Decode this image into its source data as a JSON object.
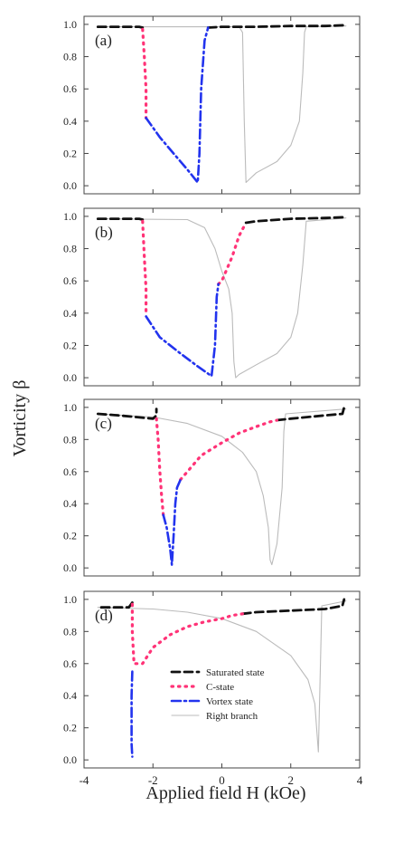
{
  "chart_data": {
    "type": "line",
    "xlabel": "Applied field H (kOe)",
    "ylabel": "Vorticity β",
    "xlim": [
      -4,
      4
    ],
    "ylim": [
      -0.05,
      1.05
    ],
    "xticks": [
      "-4",
      "-2",
      "0",
      "2",
      "4"
    ],
    "yticks": [
      "0.0",
      "0.2",
      "0.4",
      "0.6",
      "0.8",
      "1.0"
    ],
    "legend": {
      "placement": "inside bottom panel, center-right",
      "entries": [
        {
          "label": "Saturated state",
          "color": "#111111",
          "style": "dashed"
        },
        {
          "label": "C-state",
          "color": "#ff3377",
          "style": "dotted"
        },
        {
          "label": "Vortex state",
          "color": "#2233ee",
          "style": "dash-dot"
        },
        {
          "label": "Right branch",
          "color": "#bbbbbb",
          "style": "solid"
        }
      ]
    },
    "panels": [
      {
        "label": "(a)",
        "series": [
          {
            "name": "Saturated state",
            "x": [
              -3.6,
              -3.0,
              -2.6,
              -2.4,
              -2.3
            ],
            "y": [
              0.985,
              0.985,
              0.985,
              0.985,
              0.98
            ]
          },
          {
            "name": "Saturated state",
            "x": [
              -0.4,
              0.0,
              1.0,
              2.0,
              3.0,
              3.6
            ],
            "y": [
              0.98,
              0.985,
              0.985,
              0.99,
              0.99,
              0.995
            ]
          },
          {
            "name": "C-state",
            "x": [
              -2.3,
              -2.25,
              -2.2,
              -2.2
            ],
            "y": [
              0.97,
              0.8,
              0.6,
              0.42
            ]
          },
          {
            "name": "Vortex state",
            "x": [
              -2.2,
              -1.8,
              -1.4,
              -1.0,
              -0.7,
              -0.65,
              -0.6,
              -0.5,
              -0.4
            ],
            "y": [
              0.42,
              0.3,
              0.2,
              0.1,
              0.02,
              0.2,
              0.6,
              0.9,
              0.98
            ]
          },
          {
            "name": "Right branch",
            "x": [
              -3.6,
              -2.0,
              0.0,
              0.5,
              0.6,
              0.65,
              0.7,
              1.0,
              1.6,
              2.0,
              2.25,
              2.35,
              2.4,
              2.45,
              3.6
            ],
            "y": [
              0.985,
              0.985,
              0.985,
              0.985,
              0.95,
              0.4,
              0.02,
              0.08,
              0.15,
              0.25,
              0.4,
              0.7,
              0.95,
              0.985,
              0.99
            ]
          }
        ]
      },
      {
        "label": "(b)",
        "series": [
          {
            "name": "Saturated state",
            "x": [
              -3.6,
              -3.0,
              -2.4,
              -2.3
            ],
            "y": [
              0.985,
              0.985,
              0.985,
              0.98
            ]
          },
          {
            "name": "Saturated state",
            "x": [
              0.7,
              1.0,
              2.0,
              3.0,
              3.6
            ],
            "y": [
              0.96,
              0.97,
              0.985,
              0.99,
              0.995
            ]
          },
          {
            "name": "C-state",
            "x": [
              -2.3,
              -2.25,
              -2.2,
              -2.2
            ],
            "y": [
              0.97,
              0.75,
              0.55,
              0.4
            ]
          },
          {
            "name": "C-state",
            "x": [
              -0.1,
              0.0,
              0.1,
              0.3,
              0.5,
              0.7
            ],
            "y": [
              0.58,
              0.6,
              0.65,
              0.75,
              0.88,
              0.96
            ]
          },
          {
            "name": "Vortex state",
            "x": [
              -2.2,
              -1.8,
              -1.2,
              -0.7,
              -0.3,
              -0.2,
              -0.15,
              -0.1
            ],
            "y": [
              0.38,
              0.25,
              0.15,
              0.07,
              0.01,
              0.2,
              0.5,
              0.58
            ]
          },
          {
            "name": "Right branch",
            "x": [
              -3.6,
              -1.0,
              -0.5,
              -0.2,
              0.0,
              0.2,
              0.3,
              0.35,
              0.4,
              0.5,
              1.0,
              1.6,
              2.0,
              2.2,
              2.35,
              2.45,
              3.6
            ],
            "y": [
              0.985,
              0.98,
              0.93,
              0.8,
              0.66,
              0.55,
              0.4,
              0.1,
              0.0,
              0.02,
              0.08,
              0.15,
              0.25,
              0.4,
              0.7,
              0.97,
              0.99
            ]
          }
        ]
      },
      {
        "label": "(c)",
        "series": [
          {
            "name": "Saturated state",
            "x": [
              -3.6,
              -3.0,
              -2.5,
              -2.0,
              -1.9,
              -1.9
            ],
            "y": [
              0.96,
              0.95,
              0.94,
              0.93,
              0.95,
              0.99
            ]
          },
          {
            "name": "Saturated state",
            "x": [
              1.6,
              2.0,
              2.5,
              3.0,
              3.5,
              3.55
            ],
            "y": [
              0.92,
              0.93,
              0.94,
              0.95,
              0.96,
              1.0
            ]
          },
          {
            "name": "C-state",
            "x": [
              -1.9,
              -1.85,
              -1.8,
              -1.75,
              -1.7
            ],
            "y": [
              0.93,
              0.8,
              0.6,
              0.45,
              0.33
            ]
          },
          {
            "name": "C-state",
            "x": [
              -1.2,
              -1.0,
              -0.6,
              0.0,
              0.5,
              1.0,
              1.4,
              1.6
            ],
            "y": [
              0.55,
              0.6,
              0.7,
              0.78,
              0.84,
              0.88,
              0.91,
              0.92
            ]
          },
          {
            "name": "Vortex state",
            "x": [
              -1.7,
              -1.6,
              -1.5,
              -1.45,
              -1.4,
              -1.35,
              -1.3,
              -1.2
            ],
            "y": [
              0.33,
              0.25,
              0.12,
              0.02,
              0.2,
              0.4,
              0.5,
              0.55
            ]
          },
          {
            "name": "Right branch",
            "x": [
              -3.6,
              -2.0,
              -1.0,
              0.0,
              0.6,
              1.0,
              1.2,
              1.35,
              1.4,
              1.45,
              1.6,
              1.75,
              1.8,
              1.85,
              3.6
            ],
            "y": [
              0.96,
              0.94,
              0.9,
              0.82,
              0.72,
              0.6,
              0.45,
              0.25,
              0.05,
              0.02,
              0.15,
              0.5,
              0.85,
              0.96,
              0.99
            ]
          }
        ]
      },
      {
        "label": "(d)",
        "series": [
          {
            "name": "Saturated state",
            "x": [
              -3.5,
              -3.0,
              -2.7,
              -2.6
            ],
            "y": [
              0.95,
              0.95,
              0.95,
              0.98
            ]
          },
          {
            "name": "Saturated state",
            "x": [
              0.6,
              1.0,
              2.0,
              3.0,
              3.5,
              3.55
            ],
            "y": [
              0.91,
              0.92,
              0.93,
              0.94,
              0.96,
              1.0
            ]
          },
          {
            "name": "C-state",
            "x": [
              -2.6,
              -2.6,
              -2.55,
              -2.3,
              -2.0,
              -1.5,
              -1.0,
              -0.5,
              0.0,
              0.3,
              0.6
            ],
            "y": [
              0.97,
              0.8,
              0.6,
              0.6,
              0.7,
              0.78,
              0.83,
              0.86,
              0.88,
              0.9,
              0.91
            ]
          },
          {
            "name": "Vortex state",
            "x": [
              -2.6,
              -2.62,
              -2.62,
              -2.6
            ],
            "y": [
              0.55,
              0.4,
              0.1,
              0.02
            ]
          },
          {
            "name": "Right branch",
            "x": [
              -3.6,
              -2.0,
              -1.0,
              0.0,
              1.0,
              2.0,
              2.5,
              2.7,
              2.8,
              2.85,
              2.9,
              3.6
            ],
            "y": [
              0.95,
              0.94,
              0.92,
              0.88,
              0.8,
              0.65,
              0.5,
              0.35,
              0.05,
              0.5,
              0.96,
              0.99
            ]
          }
        ]
      }
    ]
  }
}
